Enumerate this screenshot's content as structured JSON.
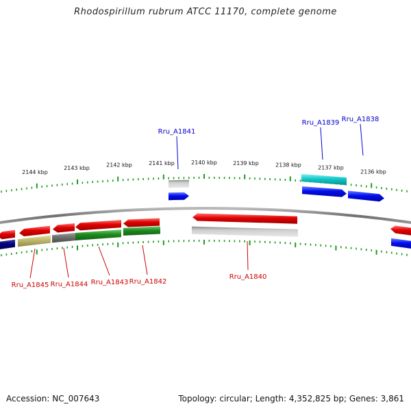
{
  "title": "Rhodospirillum rubrum ATCC 11170, complete genome",
  "footer": {
    "accession": "Accession: NC_007643",
    "summary": "Topology: circular; Length: 4,352,825 bp; Genes: 3,861"
  },
  "kbp_labels": [
    "2144 kbp",
    "2143 kbp",
    "2142 kbp",
    "2141 kbp",
    "2140 kbp",
    "2139 kbp",
    "2138 kbp",
    "2137 kbp",
    "2136 kbp"
  ],
  "gene_labels": {
    "forward": [
      "Rru_A1841",
      "Rru_A1839",
      "Rru_A1838"
    ],
    "reverse": [
      "Rru_A1845",
      "Rru_A1844",
      "Rru_A1843",
      "Rru_A1842",
      "Rru_A1840"
    ]
  },
  "colors": {
    "forward_label": "#0000cc",
    "reverse_label": "#cc0000",
    "tick": "#1a9a1a",
    "backbone": "#777777",
    "red": "#e00000",
    "blue": "#0010ee",
    "green": "#1e8a1e",
    "cyan": "#10c8c8",
    "gray": "#bdbdbd",
    "darkgray": "#6e6e6e",
    "khaki": "#bdb76b",
    "navy": "#00007a"
  }
}
